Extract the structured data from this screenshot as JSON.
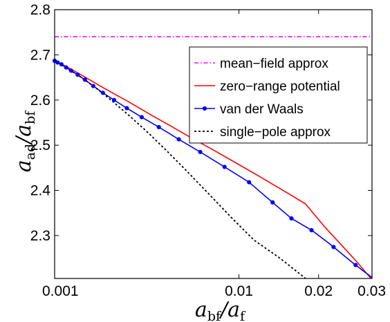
{
  "chart_data": {
    "type": "line",
    "xlabel": {
      "main": "a",
      "sub1": "bf",
      "slash": "/a",
      "sub2": "f"
    },
    "ylabel": {
      "main": "a",
      "sub1": "ad",
      "slash": "/a",
      "sub2": "bf"
    },
    "x_ticks": [
      {
        "value": 0.001,
        "label": "0.001"
      },
      {
        "value": 0.01,
        "label": "0.01"
      },
      {
        "value": 0.02,
        "label": "0.02"
      },
      {
        "value": 0.03,
        "label": "0.03"
      }
    ],
    "y_ticks": [
      {
        "value": 2.3,
        "label": "2.3"
      },
      {
        "value": 2.4,
        "label": "2.4"
      },
      {
        "value": 2.5,
        "label": "2.5"
      },
      {
        "value": 2.6,
        "label": "2.6"
      },
      {
        "value": 2.7,
        "label": "2.7"
      },
      {
        "value": 2.8,
        "label": "2.8"
      }
    ],
    "ylim": [
      2.205,
      2.8
    ],
    "x_scale": "fourth-root",
    "grid": false,
    "legend_position": "top-right",
    "series": [
      {
        "name": "mean−field approx",
        "color": "#ff00ff",
        "style": "dash-dot",
        "x": [
          0.001,
          0.03
        ],
        "y": [
          2.74,
          2.74
        ]
      },
      {
        "name": "zero−range potential",
        "color": "#ff0000",
        "style": "solid",
        "x": [
          0.001,
          0.0011,
          0.0013,
          0.0016,
          0.002,
          0.0025,
          0.003,
          0.004,
          0.005,
          0.006,
          0.008,
          0.01,
          0.012,
          0.015,
          0.018,
          0.021,
          0.024,
          0.027,
          0.03
        ],
        "y": [
          2.687,
          2.681,
          2.669,
          2.652,
          2.632,
          2.612,
          2.595,
          2.565,
          2.541,
          2.52,
          2.486,
          2.457,
          2.432,
          2.399,
          2.37,
          2.319,
          2.278,
          2.24,
          2.202
        ]
      },
      {
        "name": "van der Waals",
        "color": "#0000ff",
        "style": "solid-marker",
        "x": [
          0.001,
          0.00105,
          0.00112,
          0.00121,
          0.00131,
          0.00145,
          0.00162,
          0.00183,
          0.0021,
          0.00245,
          0.0029,
          0.0035,
          0.0043,
          0.0054,
          0.0068,
          0.0087,
          0.011,
          0.013,
          0.016,
          0.019,
          0.022,
          0.026,
          0.03
        ],
        "y": [
          2.687,
          2.683,
          2.679,
          2.672,
          2.665,
          2.656,
          2.645,
          2.631,
          2.616,
          2.6,
          2.582,
          2.562,
          2.54,
          2.513,
          2.485,
          2.452,
          2.418,
          2.383,
          2.338,
          2.311,
          2.28,
          2.24,
          2.207
        ]
      },
      {
        "name": "single−pole approx",
        "color": "#000000",
        "style": "dotted",
        "x": [
          0.001,
          0.0012,
          0.0015,
          0.0019,
          0.0024,
          0.003,
          0.0038,
          0.0048,
          0.006,
          0.0075,
          0.0093,
          0.0115,
          0.0145,
          0.018
        ],
        "y": [
          2.687,
          2.672,
          2.652,
          2.627,
          2.597,
          2.565,
          2.527,
          2.484,
          2.439,
          2.39,
          2.34,
          2.29,
          2.25,
          2.205
        ]
      }
    ],
    "van_der_waals_markers": [
      0.001,
      0.00105,
      0.00112,
      0.00121,
      0.00131,
      0.00145,
      0.00162,
      0.00183,
      0.0021,
      0.00245,
      0.0029,
      0.0035,
      0.0043,
      0.0054,
      0.0068,
      0.0087,
      0.011,
      0.0136,
      0.016,
      0.0189,
      0.0225,
      0.0266
    ]
  }
}
